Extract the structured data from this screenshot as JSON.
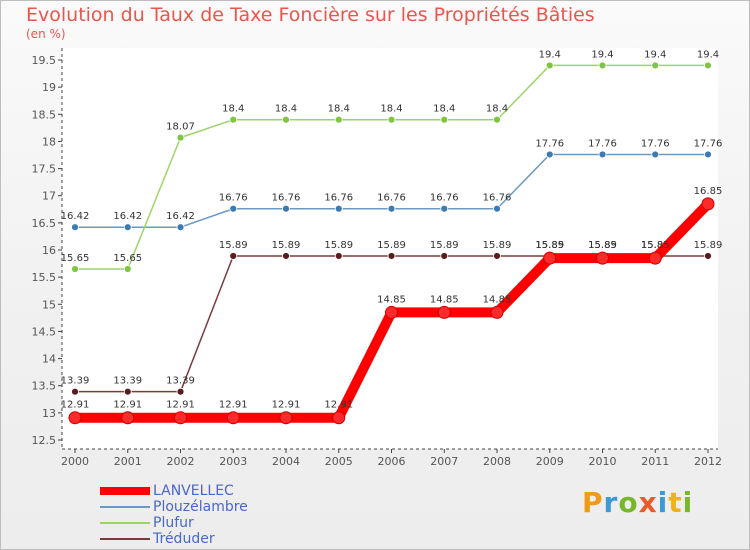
{
  "title": "Evolution du Taux de Taxe Foncière sur les Propriétés Bâties",
  "unit": "(en %)",
  "logo": {
    "text": "Proxiti",
    "colors": [
      "#f09a1a",
      "#3b9ad6",
      "#77b82a",
      "#e85c2b",
      "#3b9ad6",
      "#f0b21a",
      "#77b82a"
    ]
  },
  "chart_data": {
    "type": "line",
    "title": "Evolution du Taux de Taxe Foncière sur les Propriétés Bâties",
    "ylabel": "(en %)",
    "xlabel": "",
    "categories": [
      "2000",
      "2001",
      "2002",
      "2003",
      "2004",
      "2005",
      "2006",
      "2007",
      "2008",
      "2009",
      "2010",
      "2011",
      "2012"
    ],
    "ylim": [
      12.5,
      19.5
    ],
    "yticks": [
      "12.5",
      "13",
      "13.5",
      "14",
      "14.5",
      "15",
      "15.5",
      "16",
      "16.5",
      "17",
      "17.5",
      "18",
      "18.5",
      "19",
      "19.5"
    ],
    "legend_position": "bottom-left",
    "series": [
      {
        "name": "Plouzélambre",
        "color": "#6a9ac4",
        "marker": "#3d7ab3",
        "values": [
          16.42,
          16.42,
          16.42,
          16.76,
          16.76,
          16.76,
          16.76,
          16.76,
          16.76,
          17.76,
          17.76,
          17.76,
          17.76
        ],
        "labels": [
          "16.42",
          "16.42",
          "16.42",
          "16.76",
          "16.76",
          "16.76",
          "16.76",
          "16.76",
          "16.76",
          "17.76",
          "17.76",
          "17.76",
          "17.76"
        ]
      },
      {
        "name": "Plufur",
        "color": "#9dd468",
        "marker": "#7ec640",
        "values": [
          15.65,
          15.65,
          18.07,
          18.4,
          18.4,
          18.4,
          18.4,
          18.4,
          18.4,
          19.4,
          19.4,
          19.4,
          19.4
        ],
        "labels": [
          "15.65",
          "15.65",
          "18.07",
          "18.4",
          "18.4",
          "18.4",
          "18.4",
          "18.4",
          "18.4",
          "19.4",
          "19.4",
          "19.4",
          "19.4"
        ]
      },
      {
        "name": "Tréduder",
        "color": "#7a3b3b",
        "marker": "#5a1c1c",
        "values": [
          13.39,
          13.39,
          13.39,
          15.89,
          15.89,
          15.89,
          15.89,
          15.89,
          15.89,
          15.89,
          15.89,
          15.89,
          15.89
        ],
        "labels": [
          "13.39",
          "13.39",
          "13.39",
          "15.89",
          "15.89",
          "15.89",
          "15.89",
          "15.89",
          "15.89",
          "15.89",
          "15.89",
          "15.89",
          "15.89"
        ]
      },
      {
        "name": "LANVELLEC",
        "color": "#ff0000",
        "marker": "#ff0000",
        "thick": true,
        "values": [
          12.91,
          12.91,
          12.91,
          12.91,
          12.91,
          12.91,
          14.85,
          14.85,
          14.85,
          15.85,
          15.85,
          15.85,
          16.85
        ],
        "labels": [
          "12.91",
          "12.91",
          "12.91",
          "12.91",
          "12.91",
          "12.91",
          "14.85",
          "14.85",
          "14.85",
          "15.85",
          "15.85",
          "15.85",
          "16.85"
        ]
      }
    ],
    "legend_order": [
      "LANVELLEC",
      "Plouzélambre",
      "Plufur",
      "Tréduder"
    ]
  }
}
